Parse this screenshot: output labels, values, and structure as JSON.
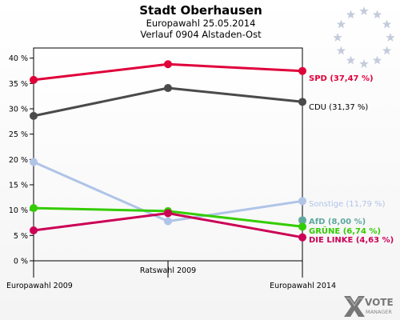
{
  "header": {
    "title": "Stadt Oberhausen",
    "subtitle": "Europawahl 25.05.2014",
    "subtitle2": "Verlauf 0904 Alstaden-Ost"
  },
  "logo": {
    "text_line1": "VOTE",
    "text_line2": "MANAGER"
  },
  "chart_data": {
    "type": "line",
    "title": "Stadt Oberhausen",
    "x": [
      "Europawahl 2009",
      "Ratswahl 2009",
      "Europawahl 2014"
    ],
    "ylim": [
      0,
      42
    ],
    "yticks": [
      0,
      5,
      10,
      15,
      20,
      25,
      30,
      35,
      40
    ],
    "ytick_labels": [
      "0 %",
      "5 %",
      "10 %",
      "15 %",
      "20 %",
      "25 %",
      "30 %",
      "35 %",
      "40 %"
    ],
    "grid": false,
    "series": [
      {
        "name": "SPD",
        "values": [
          35.7,
          38.8,
          37.47
        ],
        "color": "#e0003a",
        "label": "SPD (37,47 %)"
      },
      {
        "name": "CDU",
        "values": [
          28.6,
          34.1,
          31.37
        ],
        "color": "#4a4a4a",
        "label": "CDU (31,37 %)"
      },
      {
        "name": "Sonstige",
        "values": [
          19.5,
          7.8,
          11.79
        ],
        "color": "#b0c4e8",
        "label": "Sonstige (11,79 %)"
      },
      {
        "name": "AfD",
        "values": [
          null,
          null,
          8.0
        ],
        "color": "#5fa8a0",
        "label": "AfD (8,00 %)"
      },
      {
        "name": "GRÜNE",
        "values": [
          10.4,
          9.8,
          6.74
        ],
        "color": "#33cc00",
        "label": "GRÜNE (6,74 %)"
      },
      {
        "name": "DIE LINKE",
        "values": [
          6.0,
          9.4,
          4.63
        ],
        "color": "#cc0055",
        "label": "DIE LINKE (4,63 %)"
      }
    ]
  }
}
